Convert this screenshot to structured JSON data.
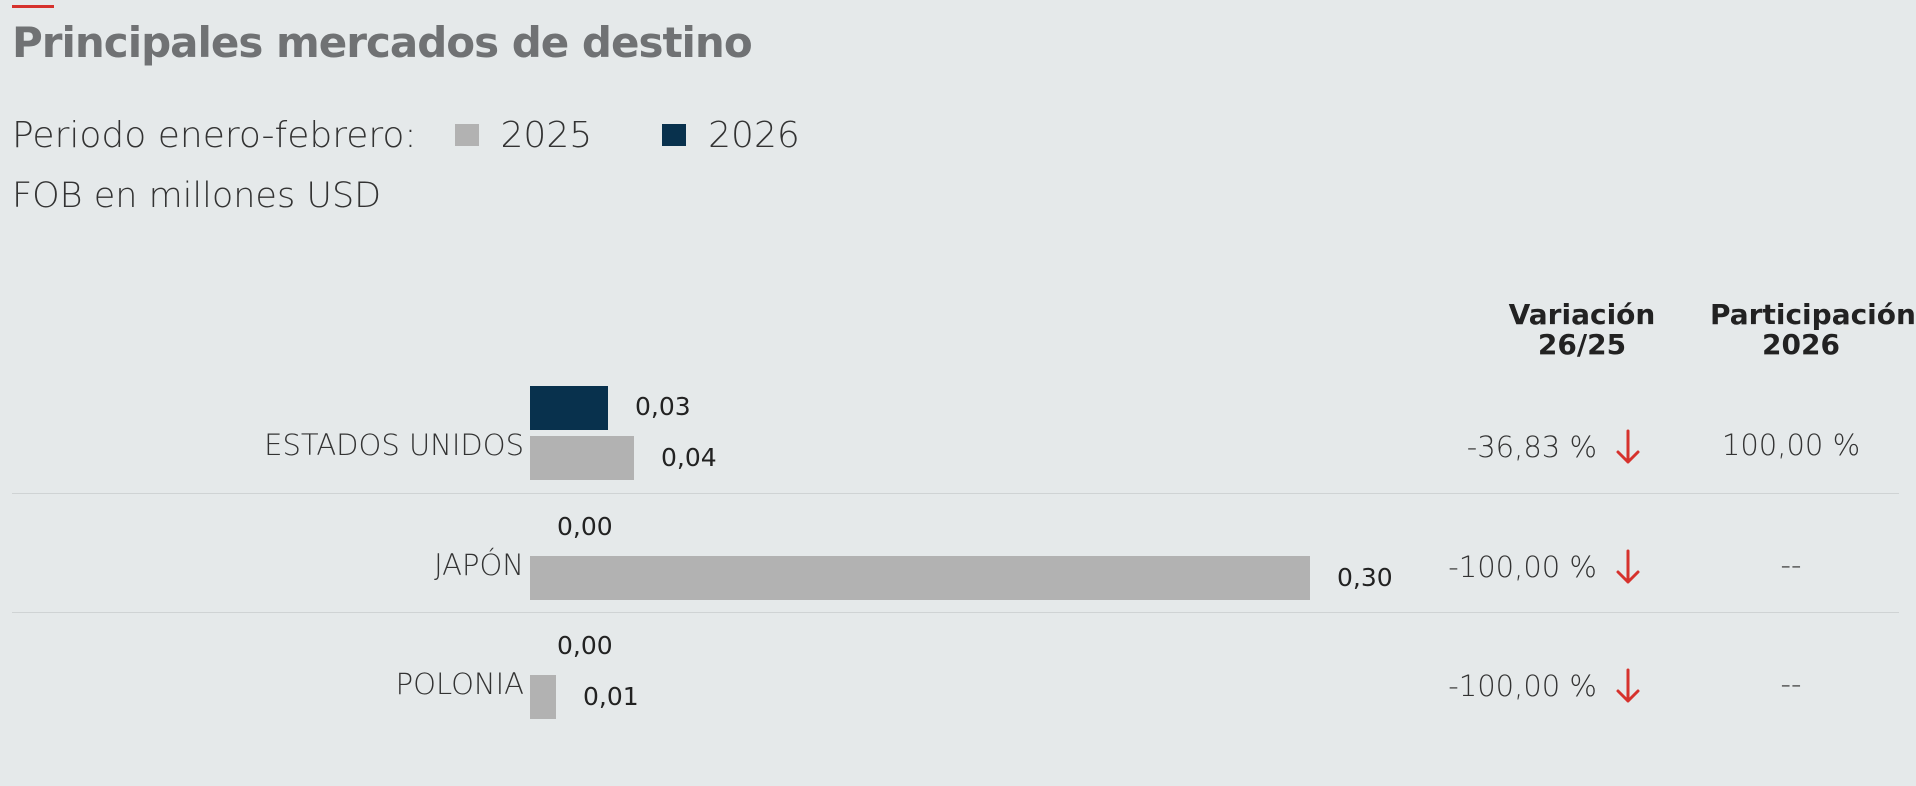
{
  "chart_data": {
    "type": "bar",
    "orientation": "horizontal",
    "title": "Principales mercados de destino",
    "subtitle": "FOB en millones USD",
    "legend_prefix": "Periodo enero-febrero:",
    "legend_placement": "top-left",
    "grid": false,
    "xlim": [
      0,
      0.3
    ],
    "categories": [
      "ESTADOS UNIDOS",
      "JAPÓN",
      "POLONIA"
    ],
    "series": [
      {
        "name": "2026",
        "color": "#08314d",
        "values": [
          0.03,
          0.0,
          0.0
        ],
        "labels": [
          "0,03",
          "0,00",
          "0,00"
        ]
      },
      {
        "name": "2025",
        "color": "#b2b2b2",
        "values": [
          0.04,
          0.3,
          0.01
        ],
        "labels": [
          "0,04",
          "0,30",
          "0,01"
        ]
      }
    ],
    "table": {
      "headers": [
        "Variación 26/25",
        "Participación 2026"
      ],
      "variation": [
        "-36,83 %",
        "-100,00 %",
        "-100,00 %"
      ],
      "variation_icon": [
        "arrow-down-icon",
        "arrow-down-icon",
        "arrow-down-icon"
      ],
      "variation_color": "#d6322d",
      "participation": [
        "100,00 %",
        "--",
        "--"
      ]
    }
  }
}
